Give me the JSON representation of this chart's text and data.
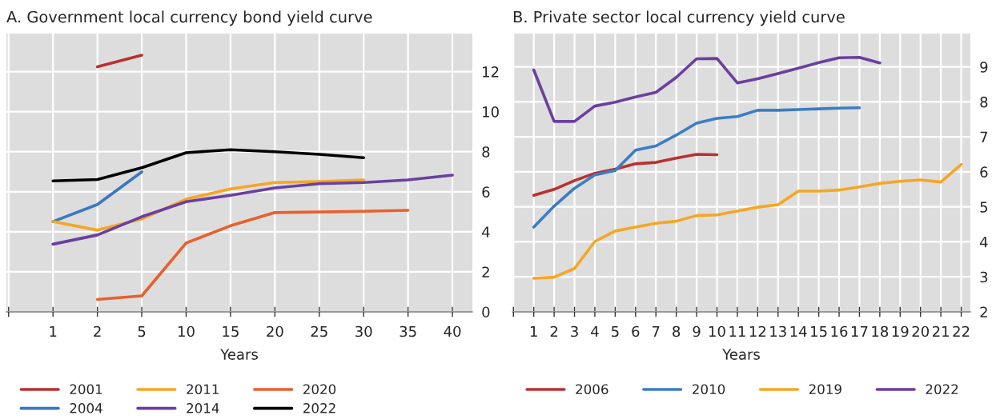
{
  "chart_data": [
    {
      "type": "line",
      "title": "A. Government local currency bond yield curve",
      "xlabel": "Years",
      "categories": [
        null,
        "1",
        "2",
        "5",
        "10",
        "15",
        "20",
        "25",
        "30",
        "35",
        "40"
      ],
      "series": [
        {
          "name": "2001",
          "color": "#b8312f",
          "values": [
            null,
            null,
            12.24,
            12.82,
            null,
            null,
            null,
            null,
            null,
            null,
            null
          ]
        },
        {
          "name": "2004",
          "color": "#3a78c0",
          "values": [
            null,
            4.51,
            5.36,
            6.99,
            null,
            null,
            null,
            null,
            null,
            null,
            null
          ]
        },
        {
          "name": "2011",
          "color": "#f5a623",
          "values": [
            null,
            4.51,
            4.08,
            4.64,
            5.63,
            6.14,
            6.46,
            6.51,
            6.59,
            null,
            null
          ]
        },
        {
          "name": "2014",
          "color": "#6b3fa0",
          "values": [
            null,
            3.38,
            3.84,
            4.75,
            5.5,
            5.82,
            6.19,
            6.4,
            6.46,
            6.59,
            6.83
          ]
        },
        {
          "name": "2020",
          "color": "#e8602c",
          "values": [
            null,
            null,
            0.62,
            0.8,
            3.44,
            4.3,
            4.96,
            4.99,
            5.02,
            5.07,
            null
          ]
        },
        {
          "name": "2022",
          "color": "#000000",
          "values": [
            null,
            6.54,
            6.61,
            7.2,
            7.95,
            8.1,
            8.0,
            7.87,
            7.7,
            null,
            null
          ]
        }
      ],
      "ylim": [
        0,
        13.9
      ],
      "yticks": [
        0,
        2,
        4,
        6,
        8,
        10,
        12
      ],
      "grid": true,
      "legend": "bottom"
    },
    {
      "type": "line",
      "title": "B. Private sector local currency yield curve",
      "xlabel": "Years",
      "categories": [
        null,
        "1",
        "2",
        "3",
        "4",
        "5",
        "6",
        "7",
        "8",
        "9",
        "10",
        "11",
        "12",
        "13",
        "14",
        "15",
        "16",
        "17",
        "18",
        "19",
        "20",
        "21",
        "22"
      ],
      "series": [
        {
          "name": "2006",
          "color": "#b83232",
          "values": [
            null,
            5.33,
            5.5,
            5.75,
            5.96,
            6.08,
            6.23,
            6.27,
            6.39,
            6.5,
            6.49,
            null,
            null,
            null,
            null,
            null,
            null,
            null,
            null,
            null,
            null,
            null,
            null
          ]
        },
        {
          "name": "2010",
          "color": "#3b7dc4",
          "values": [
            null,
            4.42,
            5.02,
            5.53,
            5.91,
            6.04,
            6.62,
            6.74,
            7.05,
            7.39,
            7.53,
            7.58,
            7.76,
            7.76,
            7.78,
            7.8,
            7.82,
            7.83,
            null,
            null,
            null,
            null,
            null
          ]
        },
        {
          "name": "2019",
          "color": "#f5a623",
          "values": [
            null,
            2.96,
            2.99,
            3.24,
            4.01,
            4.31,
            4.42,
            4.53,
            4.59,
            4.75,
            4.77,
            4.88,
            4.99,
            5.06,
            5.45,
            5.45,
            5.48,
            5.57,
            5.67,
            5.73,
            5.77,
            5.71,
            6.21
          ]
        },
        {
          "name": "2022",
          "color": "#6b3fa0",
          "values": [
            null,
            8.91,
            7.44,
            7.44,
            7.88,
            7.99,
            8.14,
            8.27,
            8.7,
            9.23,
            9.24,
            8.54,
            8.66,
            8.81,
            8.96,
            9.12,
            9.26,
            9.27,
            9.11,
            null,
            null,
            null,
            null
          ]
        }
      ],
      "ylim": [
        2,
        9.95
      ],
      "yticks": [
        2,
        3,
        4,
        5,
        6,
        7,
        8,
        9
      ],
      "grid": true,
      "legend": "bottom"
    }
  ]
}
